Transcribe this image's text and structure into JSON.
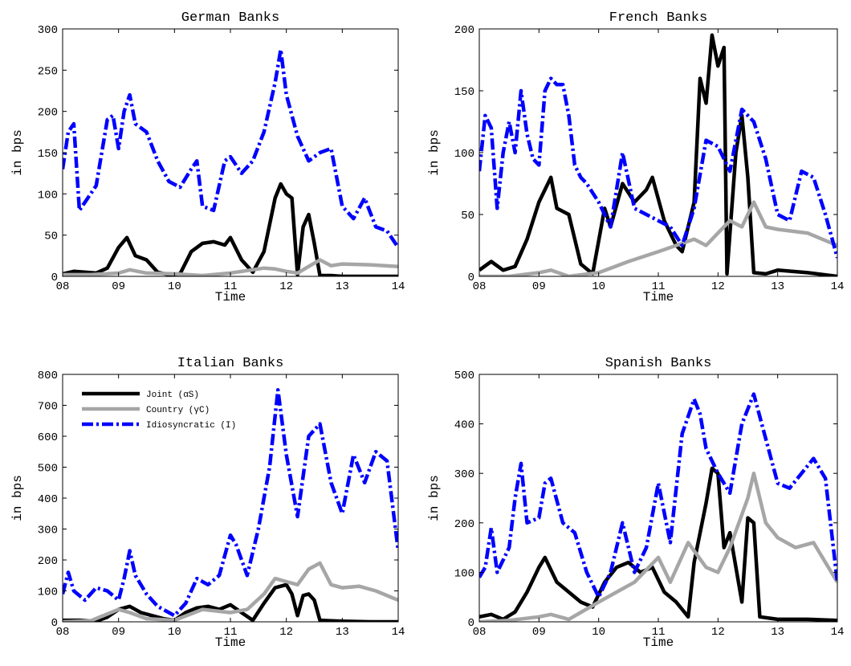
{
  "chart_data": [
    {
      "type": "line",
      "title": "German Banks",
      "xlabel": "Time",
      "ylabel": "in bps",
      "xlim": [
        8,
        14
      ],
      "ylim": [
        0,
        300
      ],
      "xticks": [
        "08",
        "09",
        "10",
        "11",
        "12",
        "13",
        "14"
      ],
      "yticks": [
        "0",
        "50",
        "100",
        "150",
        "200",
        "250",
        "300"
      ],
      "series": [
        {
          "name": "Joint (αS)",
          "color": "#000000",
          "style": "solid",
          "x": [
            8.0,
            8.2,
            8.6,
            8.8,
            9.0,
            9.15,
            9.3,
            9.5,
            9.7,
            9.9,
            10.1,
            10.3,
            10.5,
            10.7,
            10.9,
            11.0,
            11.2,
            11.4,
            11.6,
            11.8,
            11.9,
            12.0,
            12.1,
            12.2,
            12.3,
            12.4,
            12.5,
            12.6,
            12.8,
            13.0,
            13.5,
            14.0
          ],
          "y": [
            3,
            6,
            4,
            10,
            35,
            47,
            25,
            20,
            5,
            2,
            3,
            30,
            40,
            42,
            38,
            47,
            20,
            5,
            30,
            95,
            112,
            100,
            95,
            2,
            60,
            75,
            40,
            1,
            1,
            0,
            0,
            0
          ]
        },
        {
          "name": "Country (γC)",
          "color": "#a6a6a6",
          "style": "solid",
          "x": [
            8.0,
            8.5,
            9.0,
            9.2,
            9.5,
            10.0,
            10.5,
            11.0,
            11.3,
            11.6,
            11.8,
            12.0,
            12.2,
            12.4,
            12.6,
            12.8,
            13.0,
            13.5,
            14.0
          ],
          "y": [
            2,
            2,
            4,
            8,
            4,
            3,
            1,
            4,
            7,
            10,
            9,
            6,
            4,
            12,
            20,
            13,
            15,
            14,
            12
          ]
        },
        {
          "name": "Idiosyncratic (I)",
          "color": "#0000ff",
          "style": "dashdot",
          "x": [
            8.0,
            8.1,
            8.2,
            8.3,
            8.4,
            8.6,
            8.8,
            8.9,
            9.0,
            9.1,
            9.2,
            9.3,
            9.5,
            9.7,
            9.9,
            10.1,
            10.3,
            10.4,
            10.5,
            10.7,
            10.9,
            11.0,
            11.2,
            11.4,
            11.6,
            11.8,
            11.9,
            12.0,
            12.2,
            12.4,
            12.6,
            12.8,
            13.0,
            13.2,
            13.4,
            13.6,
            13.8,
            14.0
          ],
          "y": [
            130,
            175,
            185,
            80,
            90,
            110,
            190,
            195,
            155,
            200,
            220,
            185,
            175,
            140,
            115,
            108,
            130,
            140,
            85,
            80,
            140,
            145,
            125,
            140,
            175,
            235,
            275,
            220,
            170,
            140,
            150,
            155,
            85,
            70,
            95,
            60,
            55,
            35
          ]
        }
      ]
    },
    {
      "type": "line",
      "title": "French Banks",
      "xlabel": "Time",
      "ylabel": "in bps",
      "xlim": [
        8,
        14
      ],
      "ylim": [
        0,
        200
      ],
      "xticks": [
        "08",
        "09",
        "10",
        "11",
        "12",
        "13",
        "14"
      ],
      "yticks": [
        "0",
        "50",
        "100",
        "150",
        "200"
      ],
      "series": [
        {
          "name": "Joint (αS)",
          "color": "#000000",
          "style": "solid",
          "x": [
            8.0,
            8.2,
            8.4,
            8.6,
            8.8,
            9.0,
            9.2,
            9.3,
            9.5,
            9.7,
            9.9,
            10.1,
            10.2,
            10.4,
            10.6,
            10.8,
            10.9,
            11.1,
            11.3,
            11.4,
            11.6,
            11.7,
            11.8,
            11.9,
            12.0,
            12.1,
            12.15,
            12.3,
            12.4,
            12.5,
            12.6,
            12.8,
            13.0,
            13.5,
            14.0
          ],
          "y": [
            5,
            12,
            5,
            8,
            30,
            60,
            80,
            55,
            50,
            10,
            2,
            55,
            40,
            75,
            60,
            70,
            80,
            45,
            25,
            20,
            60,
            160,
            140,
            195,
            170,
            185,
            2,
            100,
            130,
            80,
            3,
            2,
            5,
            3,
            0
          ]
        },
        {
          "name": "Country (γC)",
          "color": "#a6a6a6",
          "style": "solid",
          "x": [
            8.0,
            8.5,
            9.0,
            9.2,
            9.5,
            10.0,
            10.5,
            11.0,
            11.3,
            11.6,
            11.8,
            12.0,
            12.2,
            12.4,
            12.6,
            12.8,
            13.0,
            13.5,
            14.0
          ],
          "y": [
            0,
            0,
            3,
            5,
            0,
            3,
            12,
            20,
            25,
            30,
            25,
            35,
            45,
            40,
            60,
            40,
            38,
            35,
            25
          ]
        },
        {
          "name": "Idiosyncratic (I)",
          "color": "#0000ff",
          "style": "dashdot",
          "x": [
            8.0,
            8.1,
            8.2,
            8.3,
            8.4,
            8.5,
            8.6,
            8.7,
            8.8,
            8.9,
            9.0,
            9.1,
            9.2,
            9.3,
            9.4,
            9.5,
            9.6,
            9.7,
            9.8,
            10.0,
            10.2,
            10.4,
            10.6,
            10.8,
            11.0,
            11.2,
            11.4,
            11.6,
            11.8,
            12.0,
            12.2,
            12.4,
            12.6,
            12.8,
            13.0,
            13.2,
            13.4,
            13.6,
            13.8,
            14.0
          ],
          "y": [
            85,
            130,
            120,
            55,
            100,
            125,
            100,
            150,
            115,
            95,
            90,
            150,
            160,
            155,
            155,
            130,
            90,
            80,
            75,
            60,
            40,
            100,
            55,
            50,
            45,
            40,
            25,
            55,
            110,
            105,
            85,
            135,
            125,
            95,
            50,
            45,
            85,
            80,
            50,
            15
          ]
        }
      ]
    },
    {
      "type": "line",
      "title": "Italian Banks",
      "xlabel": "Time",
      "ylabel": "in bps",
      "xlim": [
        8,
        14
      ],
      "ylim": [
        0,
        800
      ],
      "xticks": [
        "08",
        "09",
        "10",
        "11",
        "12",
        "13",
        "14"
      ],
      "yticks": [
        "0",
        "100",
        "200",
        "300",
        "400",
        "500",
        "600",
        "700",
        "800"
      ],
      "legend": {
        "position": "top-left",
        "items": [
          "Joint (αS)",
          "Country (γC)",
          "Idiosyncratic (I)"
        ]
      },
      "series": [
        {
          "name": "Joint (αS)",
          "color": "#000000",
          "style": "solid",
          "x": [
            8.0,
            8.3,
            8.6,
            8.8,
            9.0,
            9.2,
            9.4,
            9.6,
            9.8,
            10.0,
            10.2,
            10.4,
            10.6,
            10.8,
            11.0,
            11.2,
            11.4,
            11.6,
            11.8,
            12.0,
            12.1,
            12.2,
            12.3,
            12.4,
            12.5,
            12.6,
            12.8,
            13.0,
            13.5,
            14.0
          ],
          "y": [
            5,
            5,
            2,
            15,
            40,
            50,
            30,
            20,
            10,
            5,
            30,
            45,
            50,
            40,
            55,
            30,
            5,
            60,
            110,
            120,
            90,
            20,
            85,
            90,
            70,
            5,
            3,
            2,
            0,
            0
          ]
        },
        {
          "name": "Country (γC)",
          "color": "#a6a6a6",
          "style": "solid",
          "x": [
            8.0,
            8.5,
            9.0,
            9.2,
            9.5,
            10.0,
            10.5,
            11.0,
            11.3,
            11.6,
            11.8,
            12.0,
            12.2,
            12.4,
            12.6,
            12.8,
            13.0,
            13.3,
            13.6,
            14.0
          ],
          "y": [
            0,
            3,
            40,
            30,
            10,
            5,
            40,
            30,
            40,
            90,
            140,
            130,
            120,
            170,
            190,
            120,
            110,
            115,
            100,
            70
          ]
        },
        {
          "name": "Idiosyncratic (I)",
          "color": "#0000ff",
          "style": "dashdot",
          "x": [
            8.0,
            8.1,
            8.2,
            8.4,
            8.6,
            8.8,
            9.0,
            9.1,
            9.2,
            9.3,
            9.5,
            9.7,
            10.0,
            10.2,
            10.4,
            10.6,
            10.8,
            11.0,
            11.1,
            11.3,
            11.5,
            11.7,
            11.85,
            12.0,
            12.2,
            12.4,
            12.6,
            12.8,
            13.0,
            13.2,
            13.4,
            13.6,
            13.8,
            14.0
          ],
          "y": [
            90,
            160,
            100,
            70,
            110,
            100,
            70,
            140,
            230,
            150,
            90,
            50,
            20,
            60,
            140,
            120,
            150,
            280,
            250,
            150,
            300,
            500,
            750,
            540,
            340,
            600,
            640,
            450,
            350,
            540,
            450,
            550,
            520,
            230
          ]
        }
      ]
    },
    {
      "type": "line",
      "title": "Spanish Banks",
      "xlabel": "Time",
      "ylabel": "in bps",
      "xlim": [
        8,
        14
      ],
      "ylim": [
        0,
        500
      ],
      "xticks": [
        "08",
        "09",
        "10",
        "11",
        "12",
        "13",
        "14"
      ],
      "yticks": [
        "0",
        "100",
        "200",
        "300",
        "400",
        "500"
      ],
      "series": [
        {
          "name": "Joint (αS)",
          "color": "#000000",
          "style": "solid",
          "x": [
            8.0,
            8.2,
            8.4,
            8.6,
            8.8,
            9.0,
            9.1,
            9.3,
            9.5,
            9.7,
            9.9,
            10.1,
            10.3,
            10.5,
            10.7,
            10.9,
            11.1,
            11.3,
            11.5,
            11.6,
            11.8,
            11.9,
            12.0,
            12.1,
            12.2,
            12.4,
            12.5,
            12.6,
            12.7,
            13.0,
            13.5,
            14.0
          ],
          "y": [
            10,
            15,
            5,
            20,
            60,
            110,
            130,
            80,
            60,
            40,
            30,
            80,
            110,
            120,
            100,
            110,
            60,
            40,
            10,
            120,
            240,
            310,
            300,
            150,
            180,
            40,
            210,
            200,
            10,
            5,
            5,
            3
          ]
        },
        {
          "name": "Country (γC)",
          "color": "#a6a6a6",
          "style": "solid",
          "x": [
            8.0,
            8.5,
            9.0,
            9.2,
            9.5,
            10.0,
            10.3,
            10.6,
            11.0,
            11.2,
            11.5,
            11.8,
            12.0,
            12.2,
            12.5,
            12.6,
            12.8,
            13.0,
            13.3,
            13.6,
            14.0
          ],
          "y": [
            0,
            3,
            10,
            15,
            5,
            40,
            60,
            80,
            130,
            80,
            160,
            110,
            100,
            150,
            250,
            300,
            200,
            170,
            150,
            160,
            80
          ]
        },
        {
          "name": "Idiosyncratic (I)",
          "color": "#0000ff",
          "style": "dashdot",
          "x": [
            8.0,
            8.1,
            8.2,
            8.3,
            8.5,
            8.6,
            8.7,
            8.8,
            9.0,
            9.1,
            9.2,
            9.4,
            9.6,
            9.8,
            10.0,
            10.2,
            10.4,
            10.6,
            10.8,
            11.0,
            11.2,
            11.4,
            11.6,
            11.7,
            11.8,
            12.0,
            12.2,
            12.4,
            12.6,
            12.8,
            13.0,
            13.2,
            13.4,
            13.6,
            13.8,
            14.0
          ],
          "y": [
            90,
            110,
            190,
            100,
            150,
            250,
            320,
            200,
            210,
            280,
            290,
            200,
            180,
            100,
            50,
            100,
            200,
            100,
            150,
            280,
            160,
            380,
            450,
            420,
            350,
            300,
            260,
            400,
            460,
            370,
            280,
            270,
            300,
            330,
            290,
            80
          ]
        }
      ]
    }
  ]
}
